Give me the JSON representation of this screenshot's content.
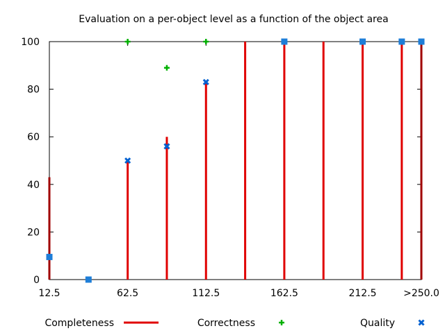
{
  "chart_data": {
    "type": "bar",
    "title": "Evaluation on a per-object level as a function of the object area",
    "xlabel": "",
    "ylabel": "",
    "ylim": [
      0,
      100
    ],
    "xlim": [
      12.5,
      250
    ],
    "y_ticks": [
      0,
      20,
      40,
      60,
      80,
      100
    ],
    "x_ticks": [
      {
        "value": 12.5,
        "label": "12.5"
      },
      {
        "value": 62.5,
        "label": "62.5"
      },
      {
        "value": 112.5,
        "label": "112.5"
      },
      {
        "value": 162.5,
        "label": "162.5"
      },
      {
        "value": 212.5,
        "label": "212.5"
      },
      {
        "value": 250,
        "label": ">250.0"
      }
    ],
    "grid": false,
    "legend_position": "bottom",
    "x": [
      12.5,
      37.5,
      62.5,
      87.5,
      112.5,
      137.5,
      162.5,
      187.5,
      212.5,
      237.5,
      250
    ],
    "series": [
      {
        "name": "Completeness",
        "style": "impulses",
        "color": "#e00000",
        "values": [
          43,
          0,
          50,
          60,
          83,
          100,
          100,
          100,
          100,
          100,
          100
        ]
      },
      {
        "name": "Correctness",
        "style": "plus",
        "color": "#00b000",
        "values": [
          10,
          0,
          100,
          89,
          100,
          null,
          100,
          null,
          100,
          100,
          100
        ]
      },
      {
        "name": "Quality",
        "style": "cross",
        "color": "#0060d0",
        "values": [
          9.5,
          0,
          50,
          56,
          83,
          null,
          100,
          null,
          100,
          100,
          100
        ]
      }
    ],
    "overlap_square_color": "#1e7ed8"
  }
}
